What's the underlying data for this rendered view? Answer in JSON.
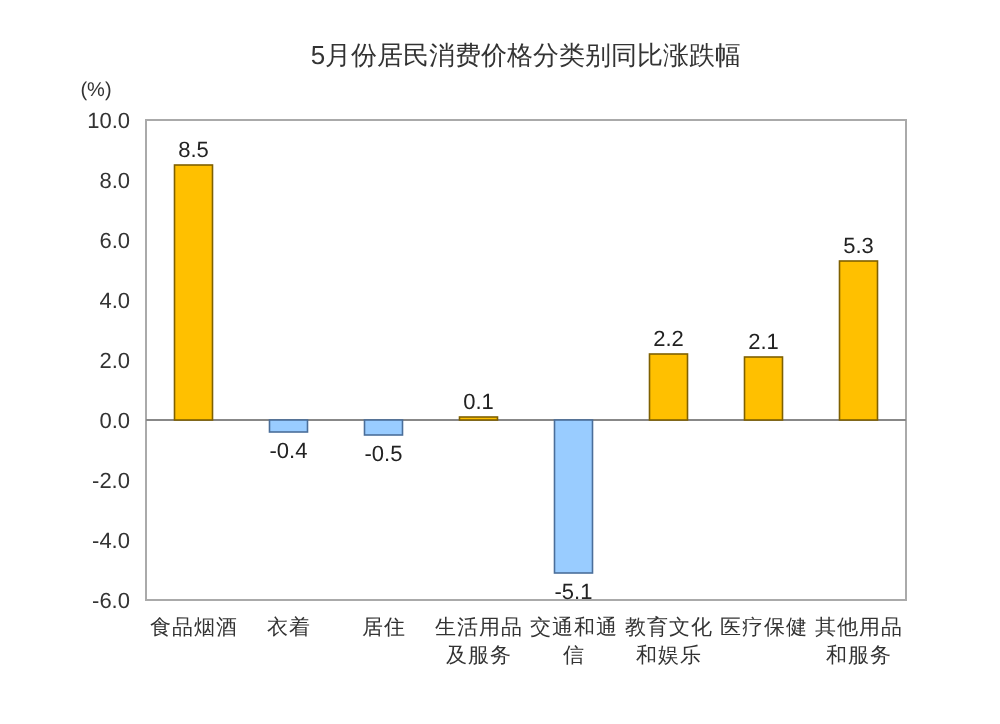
{
  "chart_data": {
    "type": "bar",
    "title": "5月份居民消费价格分类别同比涨跌幅",
    "ylabel": "(%)",
    "categories": [
      "食品烟酒",
      "衣着",
      "居住",
      "生活用品及服务",
      "交通和通信",
      "教育文化和娱乐",
      "医疗保健",
      "其他用品和服务"
    ],
    "values": [
      8.5,
      -0.4,
      -0.5,
      0.1,
      -5.1,
      2.2,
      2.1,
      5.3
    ],
    "colors": [
      "#ffc000",
      "#99ccff",
      "#99ccff",
      "#ffc000",
      "#99ccff",
      "#ffc000",
      "#ffc000",
      "#ffc000"
    ],
    "ylim": [
      -6,
      10
    ],
    "yticks": [
      {
        "value": -6,
        "label": "-6.0"
      },
      {
        "value": -4,
        "label": "-4.0"
      },
      {
        "value": -2,
        "label": "-2.0"
      },
      {
        "value": 0,
        "label": "0.0"
      },
      {
        "value": 2,
        "label": "2.0"
      },
      {
        "value": 4,
        "label": "4.0"
      },
      {
        "value": 6,
        "label": "6.0"
      },
      {
        "value": 8,
        "label": "8.0"
      },
      {
        "value": 10,
        "label": "10.0"
      }
    ],
    "data_labels": true
  }
}
